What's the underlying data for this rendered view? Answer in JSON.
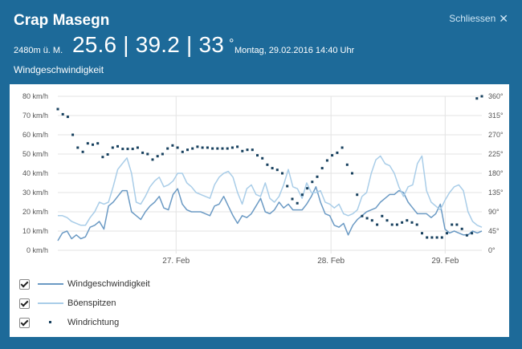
{
  "header": {
    "title": "Crap Masegn",
    "close_label": "Schliessen",
    "altitude": "2480m ü. M.",
    "readings": "25.6 | 39.2 | 33",
    "degree_symbol": "°",
    "datetime": "Montag, 29.02.2016 14:40 Uhr"
  },
  "subtitle": "Windgeschwindigkeit",
  "legend": [
    {
      "label": "Windgeschwindigkeit",
      "checked": true,
      "color": "#6b9ac4"
    },
    {
      "label": "Böenspitzen",
      "checked": true,
      "color": "#a9cde8"
    },
    {
      "label": "Windrichtung",
      "checked": true,
      "color": "#17405e"
    }
  ],
  "chart_data": {
    "type": "line",
    "x_tick_labels": [
      "27. Feb",
      "28. Feb",
      "29. Feb"
    ],
    "y_left": {
      "ticks": [
        "0 km/h",
        "10 km/h",
        "20 km/h",
        "30 km/h",
        "40 km/h",
        "50 km/h",
        "60 km/h",
        "70 km/h",
        "80 km/h"
      ],
      "range": [
        0,
        80
      ]
    },
    "y_right": {
      "ticks": [
        "0°",
        "45°",
        "90°",
        "135°",
        "180°",
        "225°",
        "270°",
        "315°",
        "360°"
      ],
      "range": [
        0,
        360
      ]
    },
    "x_range": [
      0,
      104
    ],
    "x_tick_positions": [
      29,
      67,
      95
    ],
    "series": [
      {
        "name": "Windgeschwindigkeit",
        "kind": "line",
        "axis": "left",
        "color": "#6b9ac4",
        "values": [
          5,
          9,
          10,
          6,
          8,
          6,
          7,
          12,
          13,
          15,
          11,
          23,
          25,
          28,
          31,
          31,
          20,
          18,
          16,
          20,
          23,
          25,
          28,
          22,
          21,
          29,
          32,
          24,
          21,
          20,
          20,
          20,
          19,
          18,
          23,
          24,
          28,
          23,
          18,
          14,
          18,
          17,
          19,
          23,
          27,
          20,
          19,
          21,
          25,
          22,
          24,
          21,
          21,
          21,
          24,
          28,
          33,
          25,
          19,
          18,
          13,
          12,
          14,
          8,
          13,
          16,
          18,
          20,
          21,
          22,
          25,
          27,
          29,
          29,
          31,
          30,
          25,
          22,
          19,
          19,
          19,
          17,
          19,
          24,
          11,
          9,
          10,
          9,
          8,
          8,
          10,
          9,
          10
        ]
      },
      {
        "name": "Böenspitzen",
        "kind": "line",
        "axis": "left",
        "color": "#a9cde8",
        "values": [
          18,
          18,
          17,
          15,
          14,
          13,
          13,
          17,
          20,
          25,
          24,
          25,
          33,
          42,
          45,
          48,
          40,
          25,
          24,
          28,
          33,
          36,
          38,
          33,
          34,
          36,
          40,
          40,
          35,
          33,
          30,
          29,
          28,
          27,
          34,
          38,
          40,
          41,
          38,
          30,
          24,
          32,
          34,
          29,
          28,
          35,
          27,
          25,
          28,
          34,
          42,
          33,
          32,
          27,
          35,
          30,
          30,
          31,
          25,
          24,
          22,
          24,
          19,
          18,
          19,
          21,
          28,
          30,
          40,
          47,
          49,
          45,
          44,
          40,
          33,
          28,
          33,
          34,
          45,
          49,
          31,
          25,
          23,
          21,
          26,
          30,
          33,
          34,
          31,
          20,
          15,
          13,
          12
        ]
      },
      {
        "name": "Windrichtung",
        "kind": "scatter",
        "axis": "right",
        "color": "#17405e",
        "values": [
          330,
          318,
          312,
          270,
          240,
          230,
          250,
          247,
          250,
          218,
          224,
          240,
          243,
          237,
          237,
          237,
          240,
          228,
          225,
          212,
          220,
          225,
          238,
          245,
          240,
          230,
          235,
          238,
          242,
          240,
          240,
          238,
          238,
          238,
          238,
          240,
          242,
          232,
          235,
          235,
          222,
          215,
          200,
          192,
          188,
          180,
          150,
          120,
          110,
          130,
          145,
          160,
          172,
          192,
          210,
          222,
          228,
          240,
          200,
          180,
          130,
          80,
          75,
          70,
          60,
          80,
          70,
          60,
          60,
          65,
          70,
          65,
          60,
          40,
          30,
          30,
          30,
          30,
          40,
          60,
          60,
          50,
          35,
          40,
          355,
          360
        ]
      }
    ]
  }
}
